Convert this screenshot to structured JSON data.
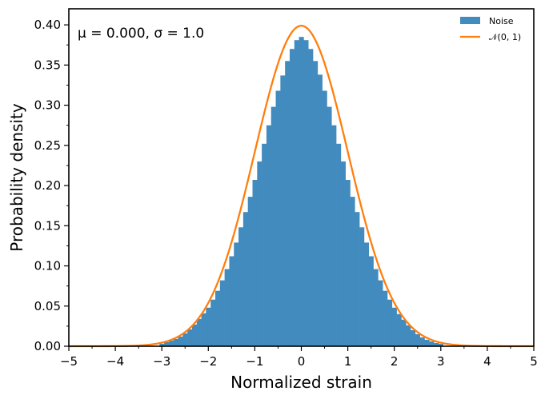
{
  "chart_data": {
    "type": "bar",
    "subtype": "histogram",
    "annotation": "μ = 0.000,  σ = 1.0",
    "xlabel": "Normalized strain",
    "ylabel": "Probability density",
    "xlim": [
      -5,
      5
    ],
    "ylim": [
      0,
      0.42
    ],
    "x_ticks": [
      -5,
      -4,
      -3,
      -2,
      -1,
      0,
      1,
      2,
      3,
      4,
      5
    ],
    "x_tick_labels": [
      "−5",
      "−4",
      "−3",
      "−2",
      "−1",
      "0",
      "1",
      "2",
      "3",
      "4",
      "5"
    ],
    "y_ticks": [
      0.0,
      0.05,
      0.1,
      0.15,
      0.2,
      0.25,
      0.3,
      0.35,
      0.4
    ],
    "y_tick_labels": [
      "0.00",
      "0.05",
      "0.10",
      "0.15",
      "0.20",
      "0.25",
      "0.30",
      "0.35",
      "0.40"
    ],
    "grid": false,
    "legend_position": "top-right",
    "series": [
      {
        "name": "Noise",
        "kind": "histogram",
        "color": "#428bbf",
        "bin_width": 0.1,
        "bins": [
          {
            "x": -3.0,
            "y": 0.003
          },
          {
            "x": -2.9,
            "y": 0.005
          },
          {
            "x": -2.8,
            "y": 0.007
          },
          {
            "x": -2.7,
            "y": 0.009
          },
          {
            "x": -2.6,
            "y": 0.012
          },
          {
            "x": -2.5,
            "y": 0.016
          },
          {
            "x": -2.4,
            "y": 0.021
          },
          {
            "x": -2.3,
            "y": 0.027
          },
          {
            "x": -2.2,
            "y": 0.034
          },
          {
            "x": -2.1,
            "y": 0.041
          },
          {
            "x": -2.0,
            "y": 0.048
          },
          {
            "x": -1.9,
            "y": 0.058
          },
          {
            "x": -1.8,
            "y": 0.069
          },
          {
            "x": -1.7,
            "y": 0.082
          },
          {
            "x": -1.6,
            "y": 0.096
          },
          {
            "x": -1.5,
            "y": 0.112
          },
          {
            "x": -1.4,
            "y": 0.129
          },
          {
            "x": -1.3,
            "y": 0.148
          },
          {
            "x": -1.2,
            "y": 0.167
          },
          {
            "x": -1.1,
            "y": 0.186
          },
          {
            "x": -1.0,
            "y": 0.207
          },
          {
            "x": -0.9,
            "y": 0.23
          },
          {
            "x": -0.8,
            "y": 0.252
          },
          {
            "x": -0.7,
            "y": 0.275
          },
          {
            "x": -0.6,
            "y": 0.298
          },
          {
            "x": -0.5,
            "y": 0.318
          },
          {
            "x": -0.4,
            "y": 0.337
          },
          {
            "x": -0.3,
            "y": 0.355
          },
          {
            "x": -0.2,
            "y": 0.37
          },
          {
            "x": -0.1,
            "y": 0.381
          },
          {
            "x": 0.0,
            "y": 0.385
          },
          {
            "x": 0.1,
            "y": 0.381
          },
          {
            "x": 0.2,
            "y": 0.37
          },
          {
            "x": 0.3,
            "y": 0.355
          },
          {
            "x": 0.4,
            "y": 0.338
          },
          {
            "x": 0.5,
            "y": 0.318
          },
          {
            "x": 0.6,
            "y": 0.298
          },
          {
            "x": 0.7,
            "y": 0.275
          },
          {
            "x": 0.8,
            "y": 0.252
          },
          {
            "x": 0.9,
            "y": 0.23
          },
          {
            "x": 1.0,
            "y": 0.207
          },
          {
            "x": 1.1,
            "y": 0.186
          },
          {
            "x": 1.2,
            "y": 0.167
          },
          {
            "x": 1.3,
            "y": 0.148
          },
          {
            "x": 1.4,
            "y": 0.129
          },
          {
            "x": 1.5,
            "y": 0.112
          },
          {
            "x": 1.6,
            "y": 0.096
          },
          {
            "x": 1.7,
            "y": 0.082
          },
          {
            "x": 1.8,
            "y": 0.069
          },
          {
            "x": 1.9,
            "y": 0.058
          },
          {
            "x": 2.0,
            "y": 0.048
          },
          {
            "x": 2.1,
            "y": 0.04
          },
          {
            "x": 2.2,
            "y": 0.033
          },
          {
            "x": 2.3,
            "y": 0.026
          },
          {
            "x": 2.4,
            "y": 0.02
          },
          {
            "x": 2.5,
            "y": 0.015
          },
          {
            "x": 2.6,
            "y": 0.011
          },
          {
            "x": 2.7,
            "y": 0.008
          },
          {
            "x": 2.8,
            "y": 0.006
          },
          {
            "x": 2.9,
            "y": 0.004
          },
          {
            "x": 3.0,
            "y": 0.003
          }
        ]
      },
      {
        "name": "𝒩(0, 1)",
        "kind": "line",
        "color": "#ff7f0e",
        "function": "standard-normal-pdf",
        "mean": 0,
        "std": 1
      }
    ]
  }
}
